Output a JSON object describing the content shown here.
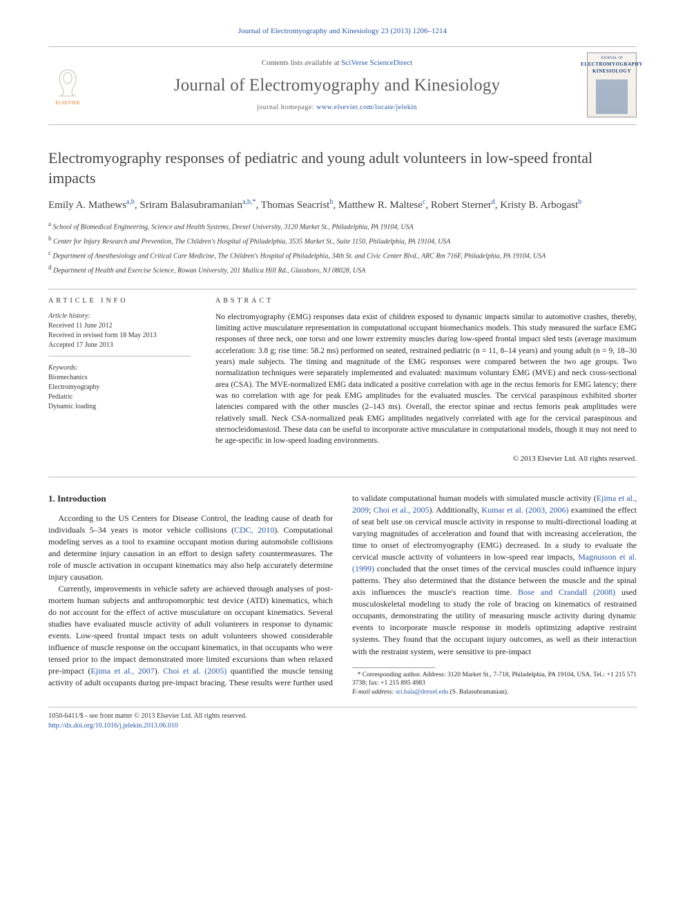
{
  "topref": "Journal of Electromyography and Kinesiology 23 (2013) 1206–1214",
  "masthead": {
    "avail_pre": "Contents lists available at ",
    "avail_link": "SciVerse ScienceDirect",
    "journal": "Journal of Electromyography and Kinesiology",
    "home_pre": "journal homepage: ",
    "home_link": "www.elsevier.com/locate/jelekin",
    "cover_t1": "JOURNAL OF",
    "cover_t2a": "ELECTROMYOGRAPHY",
    "cover_t2b": "KINESIOLOGY",
    "pub_label": "ELSEVIER"
  },
  "title": "Electromyography responses of pediatric and young adult volunteers in low-speed frontal impacts",
  "authors_html": "Emily A. Mathews<sup>a,b</sup>, Sriram Balasubramanian<sup>a,b,*</sup>, Thomas Seacrist<sup>b</sup>, Matthew R. Maltese<sup>c</sup>, Robert Sterner<sup>d</sup>, Kristy B. Arbogast<sup>b</sup>",
  "affiliations": [
    {
      "sup": "a",
      "text": "School of Biomedical Engineering, Science and Health Systems, Drexel University, 3120 Market St., Philadelphia, PA 19104, USA"
    },
    {
      "sup": "b",
      "text": "Center for Injury Research and Prevention, The Children's Hospital of Philadelphia, 3535 Market St., Suite 1150, Philadelphia, PA 19104, USA"
    },
    {
      "sup": "c",
      "text": "Department of Anesthesiology and Critical Care Medicine, The Children's Hospital of Philadelphia, 34th St. and Civic Center Blvd., ARC Rm 716F, Philadelphia, PA 19104, USA"
    },
    {
      "sup": "d",
      "text": "Department of Health and Exercise Science, Rowan University, 201 Mullica Hill Rd., Glassboro, NJ 08028, USA"
    }
  ],
  "article_info": {
    "heading": "ARTICLE INFO",
    "hist_label": "Article history:",
    "received": "Received 11 June 2012",
    "revised": "Received in revised form 18 May 2013",
    "accepted": "Accepted 17 June 2013",
    "kw_label": "Keywords:",
    "keywords": [
      "Biomechanics",
      "Electromyography",
      "Pediatric",
      "Dynamic loading"
    ]
  },
  "abstract": {
    "heading": "ABSTRACT",
    "body": "No electromyography (EMG) responses data exist of children exposed to dynamic impacts similar to automotive crashes, thereby, limiting active musculature representation in computational occupant biomechanics models. This study measured the surface EMG responses of three neck, one torso and one lower extremity muscles during low-speed frontal impact sled tests (average maximum acceleration: 3.8 g; rise time: 58.2 ms) performed on seated, restrained pediatric (n = 11, 8–14 years) and young adult (n = 9, 18–30 years) male subjects. The timing and magnitude of the EMG responses were compared between the two age groups. Two normalization techniques were separately implemented and evaluated: maximum voluntary EMG (MVE) and neck cross-sectional area (CSA). The MVE-normalized EMG data indicated a positive correlation with age in the rectus femoris for EMG latency; there was no correlation with age for peak EMG amplitudes for the evaluated muscles. The cervical paraspinous exhibited shorter latencies compared with the other muscles (2–143 ms). Overall, the erector spinae and rectus femoris peak amplitudes were relatively small. Neck CSA-normalized peak EMG amplitudes negatively correlated with age for the cervical paraspinous and sternocleidomastoid. These data can be useful to incorporate active musculature in computational models, though it may not need to be age-specific in low-speed loading environments.",
    "copyright": "© 2013 Elsevier Ltd. All rights reserved."
  },
  "section1": {
    "heading": "1. Introduction",
    "p1": "According to the US Centers for Disease Control, the leading cause of death for individuals 5–34 years is motor vehicle collisions (CDC, 2010). Computational modeling serves as a tool to examine occupant motion during automobile collisions and determine injury causation in an effort to design safety countermeasures. The role of muscle activation in occupant kinematics may also help accurately determine injury causation.",
    "p2a": "Currently, improvements in vehicle safety are achieved through analyses of post-mortem human subjects and anthropomorphic test device (ATD) kinematics, which do not account for the effect of active musculature on occupant kinematics. Several studies have evaluated muscle activity of adult volunteers in response to dynamic events. Low-speed frontal impact tests on adult volunteers showed considerable influence of muscle response on the occupant kinematics, in that occupants who were tensed prior to ",
    "p2b": "the impact demonstrated more limited excursions than when relaxed pre-impact (Ejima et al., 2007). Choi et al. (2005) quantified the muscle tensing activity of adult occupants during pre-impact bracing. These results were further used to validate computational human models with simulated muscle activity (Ejima et al., 2009; Choi et al., 2005). Additionally, Kumar et al. (2003, 2006) examined the effect of seat belt use on cervical muscle activity in response to multi-directional loading at varying magnitudes of acceleration and found that with increasing acceleration, the time to onset of electromyography (EMG) decreased. In a study to evaluate the cervical muscle activity of volunteers in low-speed rear impacts, Magnusson et al. (1999) concluded that the onset times of the cervical muscles could influence injury patterns. They also determined that the distance between the muscle and the spinal axis influences the muscle's reaction time. Bose and Crandall (2008) used musculoskeletal modeling to study the role of bracing on kinematics of restrained occupants, demonstrating the utility of measuring muscle activity during dynamic events to incorporate muscle response in models optimizing adaptive restraint systems. They found that the occupant injury outcomes, as well as their interaction with the restraint system, were sensitive to pre-impact"
  },
  "footnote": {
    "corr": "* Corresponding author. Address: 3120 Market St., 7-718, Philadelphia, PA 19104, USA. Tel.: +1 215 571 3738; fax: +1 215 895 4983",
    "email_label": "E-mail address:",
    "email": "sri.bala@drexel.edu",
    "email_who": "(S. Balasubramanian)."
  },
  "footer": {
    "issn": "1050-6411/$ - see front matter © 2013 Elsevier Ltd. All rights reserved.",
    "doi": "http://dx.doi.org/10.1016/j.jelekin.2013.06.010"
  },
  "colors": {
    "link": "#2856a3",
    "text": "#222222",
    "rule": "#bbbbbb",
    "elsevier_orange": "#e6701a"
  }
}
